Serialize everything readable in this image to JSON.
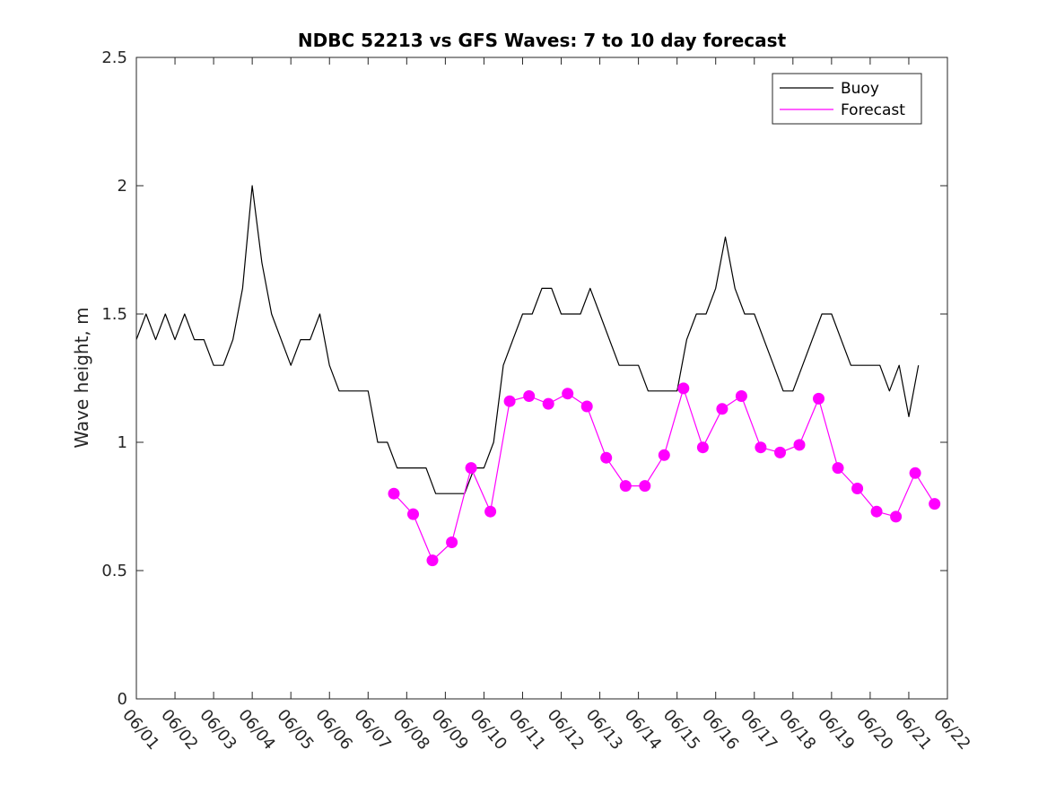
{
  "chart_data": {
    "type": "line",
    "title": "NDBC 52213 vs GFS Waves: 7 to 10 day forecast",
    "xlabel": "",
    "ylabel": "Wave height, m",
    "ylim": [
      0,
      2.5
    ],
    "yticks": [
      0,
      0.5,
      1,
      1.5,
      2,
      2.5
    ],
    "ytick_labels": [
      "0",
      "0.5",
      "1",
      "1.5",
      "2",
      "2.5"
    ],
    "xlim": [
      "06/01",
      "06/22"
    ],
    "xtick_labels": [
      "06/01",
      "06/02",
      "06/03",
      "06/04",
      "06/05",
      "06/06",
      "06/07",
      "06/08",
      "06/09",
      "06/10",
      "06/11",
      "06/12",
      "06/13",
      "06/14",
      "06/15",
      "06/16",
      "06/17",
      "06/18",
      "06/19",
      "06/20",
      "06/21",
      "06/22"
    ],
    "grid": false,
    "legend": {
      "position": "top-right",
      "entries": [
        "Buoy",
        "Forecast"
      ]
    },
    "colors": {
      "buoy": "#000000",
      "forecast": "#ff00ff"
    },
    "series": [
      {
        "name": "Buoy",
        "x": [
          "06/01 00:00",
          "06/01 06:00",
          "06/01 12:00",
          "06/01 18:00",
          "06/02 00:00",
          "06/02 06:00",
          "06/02 12:00",
          "06/02 18:00",
          "06/03 00:00",
          "06/03 06:00",
          "06/03 12:00",
          "06/03 18:00",
          "06/04 00:00",
          "06/04 06:00",
          "06/04 12:00",
          "06/04 18:00",
          "06/05 00:00",
          "06/05 06:00",
          "06/05 12:00",
          "06/05 18:00",
          "06/06 00:00",
          "06/06 06:00",
          "06/06 12:00",
          "06/06 18:00",
          "06/07 00:00",
          "06/07 06:00",
          "06/07 12:00",
          "06/07 18:00",
          "06/08 00:00",
          "06/08 06:00",
          "06/08 12:00",
          "06/08 18:00",
          "06/09 00:00",
          "06/09 06:00",
          "06/09 12:00",
          "06/09 18:00",
          "06/10 00:00",
          "06/10 06:00",
          "06/10 12:00",
          "06/10 18:00",
          "06/11 00:00",
          "06/11 06:00",
          "06/11 12:00",
          "06/11 18:00",
          "06/12 00:00",
          "06/12 06:00",
          "06/12 12:00",
          "06/12 18:00",
          "06/13 00:00",
          "06/13 06:00",
          "06/13 12:00",
          "06/13 18:00",
          "06/14 00:00",
          "06/14 06:00",
          "06/14 12:00",
          "06/14 18:00",
          "06/15 00:00",
          "06/15 06:00",
          "06/15 12:00",
          "06/15 18:00",
          "06/16 00:00",
          "06/16 06:00",
          "06/16 12:00",
          "06/16 18:00",
          "06/17 00:00",
          "06/17 06:00",
          "06/17 12:00",
          "06/17 18:00",
          "06/18 00:00",
          "06/18 06:00",
          "06/18 12:00",
          "06/18 18:00",
          "06/19 00:00",
          "06/19 06:00",
          "06/19 12:00",
          "06/19 18:00",
          "06/20 00:00",
          "06/20 06:00",
          "06/20 12:00",
          "06/20 18:00",
          "06/21 00:00",
          "06/21 06:00"
        ],
        "values": [
          1.4,
          1.5,
          1.4,
          1.5,
          1.4,
          1.5,
          1.4,
          1.4,
          1.3,
          1.3,
          1.4,
          1.6,
          2.0,
          1.7,
          1.5,
          1.4,
          1.3,
          1.4,
          1.4,
          1.5,
          1.3,
          1.2,
          1.2,
          1.2,
          1.2,
          1.0,
          1.0,
          0.9,
          0.9,
          0.9,
          0.9,
          0.8,
          0.8,
          0.8,
          0.8,
          0.9,
          0.9,
          1.0,
          1.3,
          1.4,
          1.5,
          1.5,
          1.6,
          1.6,
          1.5,
          1.5,
          1.5,
          1.6,
          1.5,
          1.4,
          1.3,
          1.3,
          1.3,
          1.2,
          1.2,
          1.2,
          1.2,
          1.4,
          1.5,
          1.5,
          1.6,
          1.8,
          1.6,
          1.5,
          1.5,
          1.4,
          1.3,
          1.2,
          1.2,
          1.3,
          1.4,
          1.5,
          1.5,
          1.4,
          1.3,
          1.3,
          1.3,
          1.3,
          1.2,
          1.3,
          1.1,
          1.3
        ]
      },
      {
        "name": "Forecast",
        "x": [
          "06/07 16:00",
          "06/08 04:00",
          "06/08 16:00",
          "06/09 04:00",
          "06/09 16:00",
          "06/10 04:00",
          "06/10 16:00",
          "06/11 04:00",
          "06/11 16:00",
          "06/12 04:00",
          "06/12 16:00",
          "06/13 04:00",
          "06/13 16:00",
          "06/14 04:00",
          "06/14 16:00",
          "06/15 04:00",
          "06/15 16:00",
          "06/16 04:00",
          "06/16 16:00",
          "06/17 04:00",
          "06/17 16:00",
          "06/18 04:00",
          "06/18 16:00",
          "06/19 04:00",
          "06/19 16:00",
          "06/20 04:00",
          "06/20 16:00",
          "06/21 04:00",
          "06/21 16:00"
        ],
        "values": [
          0.8,
          0.72,
          0.54,
          0.61,
          0.9,
          0.73,
          1.16,
          1.18,
          1.15,
          1.19,
          1.14,
          0.94,
          0.83,
          0.83,
          0.95,
          1.21,
          0.98,
          1.13,
          1.18,
          0.98,
          0.96,
          0.99,
          1.17,
          0.9,
          0.82,
          0.73,
          0.71,
          0.88,
          0.76
        ]
      }
    ]
  }
}
